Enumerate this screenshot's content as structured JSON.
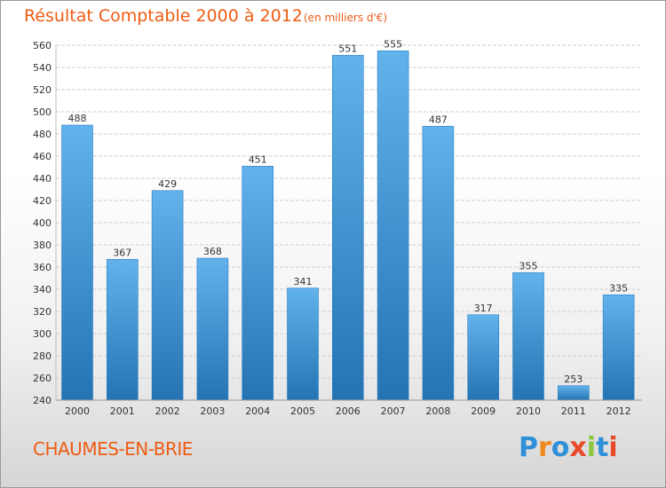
{
  "header": {
    "title": "Résultat Comptable 2000 à 2012",
    "subtitle": "(en milliers d'€)"
  },
  "footer": {
    "city": "CHAUMES-EN-BRIE",
    "logo": "Proxiti",
    "logo_colors": [
      "#2f8fd8",
      "#f08a1c",
      "#2f8fd8",
      "#e84a2a",
      "#8cc63f",
      "#2f8fd8",
      "#e84a2a"
    ]
  },
  "colors": {
    "bar_light": "#62b2ec",
    "bar_dark": "#2474b4",
    "grid": "#cfcfcf",
    "axis_text": "#333333",
    "title": "#ee5c14"
  },
  "chart_data": {
    "type": "bar",
    "title": "Résultat Comptable 2000 à 2012",
    "subtitle": "(en milliers d'€)",
    "xlabel": "",
    "ylabel": "",
    "categories": [
      "2000",
      "2001",
      "2002",
      "2003",
      "2004",
      "2005",
      "2006",
      "2007",
      "2008",
      "2009",
      "2010",
      "2011",
      "2012"
    ],
    "values": [
      488,
      367,
      429,
      368,
      451,
      341,
      551,
      555,
      487,
      317,
      355,
      253,
      335
    ],
    "ylim": [
      240,
      560
    ],
    "yticks": [
      240,
      260,
      280,
      300,
      320,
      340,
      360,
      380,
      400,
      420,
      440,
      460,
      480,
      500,
      520,
      540,
      560
    ],
    "grid": true,
    "legend": "none"
  }
}
